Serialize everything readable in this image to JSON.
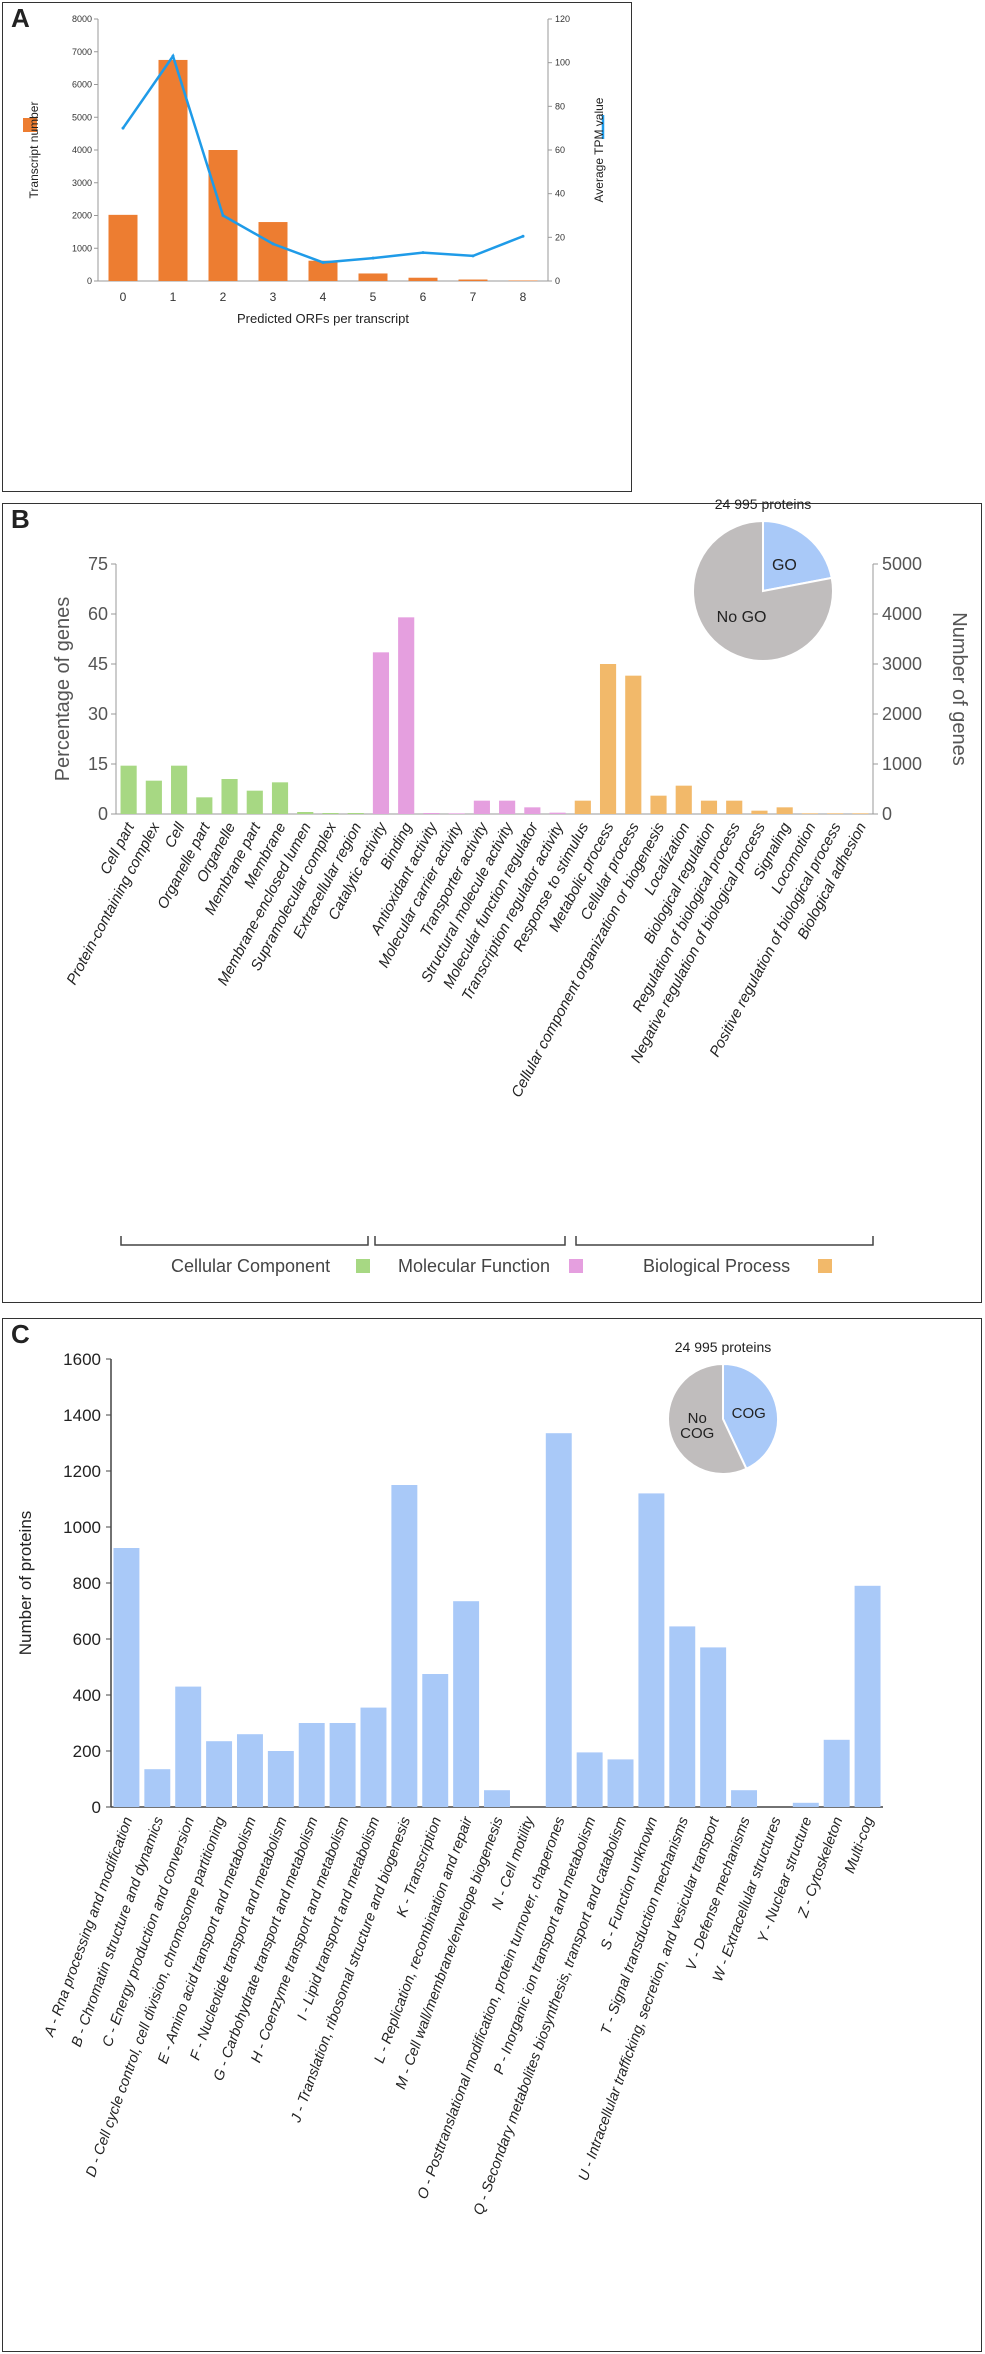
{
  "figure": {
    "panels": [
      {
        "letter": "A"
      },
      {
        "letter": "B"
      },
      {
        "letter": "C"
      }
    ]
  },
  "colors": {
    "orange": "#ED7D31",
    "blue_line": "#1f9be8",
    "go_green": "#a7d883",
    "go_pink": "#e59fdf",
    "go_orange": "#f2b96a",
    "cog_blue": "#a9c9f8",
    "pie_gray": "#c0bdbd",
    "pie_blue": "#a9c9f8"
  },
  "chart_data": [
    {
      "id": "A",
      "type": "bar",
      "categories": [
        "0",
        "1",
        "2",
        "3",
        "4",
        "5",
        "6",
        "7",
        "8"
      ],
      "series": [
        {
          "name": "Transcript number",
          "type": "bar",
          "axis": "left",
          "values": [
            2020,
            6750,
            4000,
            1800,
            620,
            230,
            100,
            45,
            15
          ]
        },
        {
          "name": "Average TPM value",
          "type": "line",
          "axis": "right",
          "values": [
            70,
            103,
            30,
            17,
            8.5,
            10.5,
            13,
            11.5,
            20.5
          ]
        }
      ],
      "xlabel": "Predicted ORFs per transcript",
      "ylabel": "Transcript number",
      "y2label": "Average TPM value",
      "ylim": [
        0,
        8000
      ],
      "y2lim": [
        0,
        120
      ],
      "yticks": [
        "0",
        "1000",
        "2000",
        "3000",
        "4000",
        "5000",
        "6000",
        "7000",
        "8000"
      ],
      "y2ticks": [
        "0",
        "20",
        "40",
        "60",
        "80",
        "100",
        "120"
      ]
    },
    {
      "id": "B",
      "type": "bar",
      "categories": [
        "Cell part",
        "Protein-containing complex",
        "Cell",
        "Organelle part",
        "Organelle",
        "Membrane part",
        "Membrane",
        "Membrane-enclosed lumen",
        "Supramolecular complex",
        "Extracellular region",
        "Catalytic activity",
        "Binding",
        "Antioxidant activity",
        "Molecular carrier activity",
        "Transporter activity",
        "Structural molecule activity",
        "Molecular function regulator",
        "Transcription regulator activity",
        "Response to stimulus",
        "Metabolic process",
        "Cellular process",
        "Cellular component organization or biogenesis",
        "Localization",
        "Biological regulation",
        "Regulation of biological process",
        "Negative regulation of biological process",
        "Signaling",
        "Locomotion",
        "Positive regulation of biological process",
        "Biological adhesion"
      ],
      "groups": [
        "CC",
        "CC",
        "CC",
        "CC",
        "CC",
        "CC",
        "CC",
        "CC",
        "CC",
        "CC",
        "MF",
        "MF",
        "MF",
        "MF",
        "MF",
        "MF",
        "MF",
        "MF",
        "BP",
        "BP",
        "BP",
        "BP",
        "BP",
        "BP",
        "BP",
        "BP",
        "BP",
        "BP",
        "BP",
        "BP"
      ],
      "values": [
        14.5,
        10,
        14.5,
        5,
        10.5,
        7,
        9.5,
        0.6,
        0.3,
        0.3,
        48.5,
        59,
        0.3,
        0.2,
        4,
        4,
        2,
        0.4,
        4,
        45,
        41.5,
        5.5,
        8.5,
        4,
        4,
        1,
        2,
        0.2,
        0.2,
        0.2
      ],
      "ylabel": "Percentage of genes",
      "y2label": "Number of genes",
      "ylim": [
        0,
        75
      ],
      "y2lim": [
        0,
        5000
      ],
      "yticks": [
        "0",
        "15",
        "30",
        "45",
        "60",
        "75"
      ],
      "y2ticks": [
        "0",
        "1000",
        "2000",
        "3000",
        "4000",
        "5000"
      ],
      "legend": [
        "Cellular Component",
        "Molecular Function",
        "Biological Process"
      ],
      "pie": {
        "title": "24 995 proteins",
        "slices": [
          {
            "label": "GO",
            "value": 22
          },
          {
            "label": "No GO",
            "value": 78
          }
        ]
      }
    },
    {
      "id": "C",
      "type": "bar",
      "categories": [
        "A - Rna processing and modification",
        "B - Chromatin structure and dynamics",
        "C - Energy production and conversion",
        "D - Cell cycle control, cell division, chromosome partitioning",
        "E - Amino acid transport and metabolism",
        "F - Nucleotide transport and metabolism",
        "G - Carbohydrate transport and metabolism",
        "H - Coenzyme transport and metabolism",
        "I - Lipid transport and metabolism",
        "J - Translation, ribosomal structure and biogenesis",
        "K - Transcription",
        "L - Replication, recombination and repair",
        "M - Cell wall/membrane/envelope biogenesis",
        "N - Cell motility",
        "O - Posttranslational modification, protein turnover, chaperones",
        "P - Inorganic ion transport and metabolism",
        "Q - Secondary metabolites biosynthesis, transport and catabolism",
        "S - Function unknown",
        "T - Signal transduction mechanisms",
        "U - Intracellular trafficking, secretion, and vesicular transport",
        "V - Defense mechanisms",
        "W - Extracellular structures",
        "Y - Nuclear structure",
        "Z - Cytoskeleton",
        "Multi-cog"
      ],
      "values": [
        925,
        135,
        430,
        235,
        260,
        200,
        300,
        300,
        355,
        1150,
        475,
        735,
        60,
        0,
        1335,
        195,
        170,
        1120,
        645,
        570,
        60,
        0,
        15,
        240,
        790
      ],
      "ylabel": "Number of proteins",
      "ylim": [
        0,
        1600
      ],
      "yticks": [
        "0",
        "200",
        "400",
        "600",
        "800",
        "1000",
        "1200",
        "1400",
        "1600"
      ],
      "pie": {
        "title": "24 995 proteins",
        "slices": [
          {
            "label": "COG",
            "value": 43
          },
          {
            "label": "No\nCOG",
            "value": 57
          }
        ]
      }
    }
  ]
}
